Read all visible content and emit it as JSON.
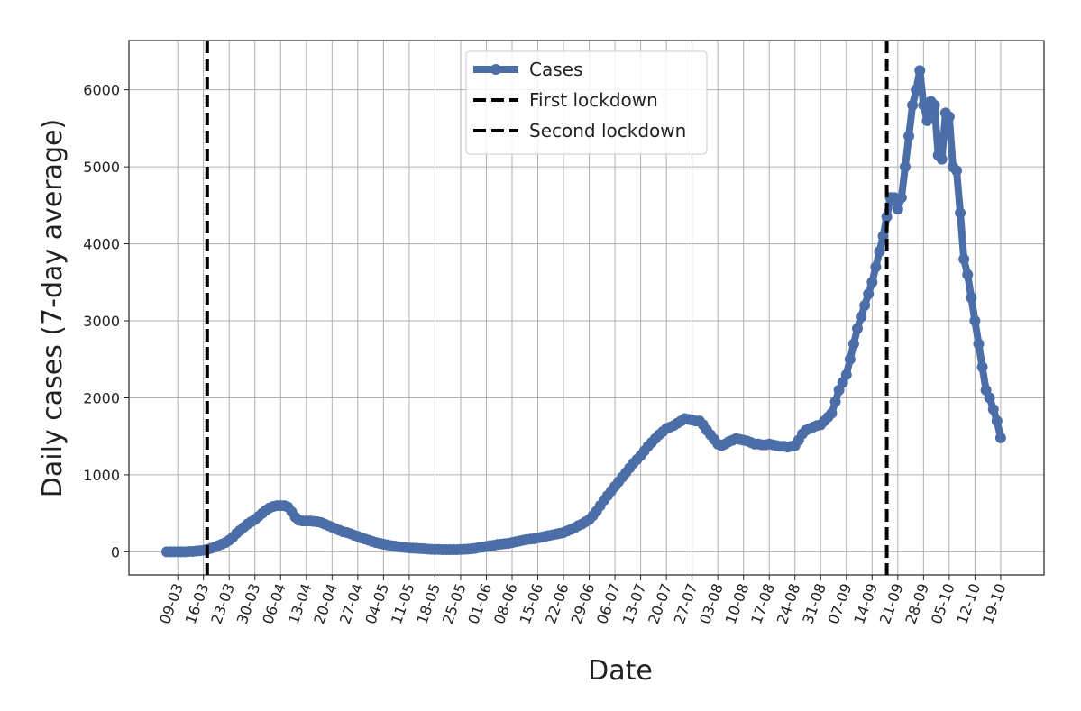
{
  "chart_data": {
    "type": "line",
    "xlabel": "Date",
    "ylabel": "Daily cases (7-day average)",
    "categories": [
      null,
      null,
      null,
      "09-03",
      null,
      null,
      null,
      null,
      null,
      null,
      "16-03",
      null,
      null,
      null,
      null,
      null,
      null,
      "23-03",
      null,
      null,
      null,
      null,
      null,
      null,
      "30-03",
      null,
      null,
      null,
      null,
      null,
      null,
      "06-04",
      null,
      null,
      null,
      null,
      null,
      null,
      "13-04",
      null,
      null,
      null,
      null,
      null,
      null,
      "20-04",
      null,
      null,
      null,
      null,
      null,
      null,
      "27-04",
      null,
      null,
      null,
      null,
      null,
      null,
      "04-05",
      null,
      null,
      null,
      null,
      null,
      null,
      "11-05",
      null,
      null,
      null,
      null,
      null,
      null,
      "18-05",
      null,
      null,
      null,
      null,
      null,
      null,
      "25-05",
      null,
      null,
      null,
      null,
      null,
      null,
      "01-06",
      null,
      null,
      null,
      null,
      null,
      null,
      "08-06",
      null,
      null,
      null,
      null,
      null,
      null,
      "15-06",
      null,
      null,
      null,
      null,
      null,
      null,
      "22-06",
      null,
      null,
      null,
      null,
      null,
      null,
      "29-06",
      null,
      null,
      null,
      null,
      null,
      null,
      "06-07",
      null,
      null,
      null,
      null,
      null,
      null,
      "13-07",
      null,
      null,
      null,
      null,
      null,
      null,
      "20-07",
      null,
      null,
      null,
      null,
      null,
      null,
      "27-07",
      null,
      null,
      null,
      null,
      null,
      null,
      "03-08",
      null,
      null,
      null,
      null,
      null,
      null,
      "10-08",
      null,
      null,
      null,
      null,
      null,
      null,
      "17-08",
      null,
      null,
      null,
      null,
      null,
      null,
      "24-08",
      null,
      null,
      null,
      null,
      null,
      null,
      "31-08",
      null,
      null,
      null,
      null,
      null,
      null,
      "07-09",
      null,
      null,
      null,
      null,
      null,
      null,
      "14-09",
      null,
      null,
      null,
      null,
      null,
      null,
      "21-09",
      null,
      null,
      null,
      null,
      null,
      null,
      "28-09",
      null,
      null,
      null,
      null,
      null,
      null,
      "05-10",
      null,
      null,
      null,
      null,
      null,
      null,
      "12-10",
      null,
      null,
      null,
      null,
      null,
      null,
      "19-10"
    ],
    "series": [
      {
        "name": "Cases",
        "color": "#4c6ea8",
        "values": [
          0,
          0,
          0,
          0,
          0,
          0,
          5,
          5,
          10,
          15,
          20,
          30,
          45,
          60,
          80,
          100,
          120,
          150,
          190,
          240,
          280,
          320,
          360,
          390,
          420,
          460,
          500,
          540,
          570,
          590,
          600,
          600,
          600,
          580,
          520,
          450,
          410,
          400,
          400,
          400,
          395,
          390,
          380,
          360,
          340,
          320,
          300,
          280,
          260,
          250,
          235,
          215,
          200,
          180,
          165,
          150,
          135,
          120,
          110,
          100,
          90,
          80,
          75,
          65,
          60,
          55,
          50,
          48,
          45,
          42,
          40,
          35,
          32,
          30,
          30,
          28,
          28,
          28,
          28,
          28,
          30,
          32,
          35,
          40,
          45,
          55,
          60,
          70,
          80,
          85,
          95,
          100,
          105,
          110,
          120,
          130,
          140,
          150,
          160,
          165,
          170,
          180,
          190,
          200,
          210,
          220,
          230,
          240,
          250,
          270,
          290,
          310,
          340,
          360,
          390,
          420,
          470,
          530,
          600,
          670,
          730,
          790,
          850,
          910,
          970,
          1030,
          1090,
          1150,
          1200,
          1250,
          1310,
          1370,
          1420,
          1470,
          1520,
          1560,
          1600,
          1620,
          1640,
          1670,
          1700,
          1730,
          1720,
          1710,
          1700,
          1700,
          1650,
          1580,
          1520,
          1460,
          1400,
          1380,
          1400,
          1430,
          1450,
          1470,
          1460,
          1450,
          1440,
          1420,
          1400,
          1400,
          1390,
          1390,
          1400,
          1390,
          1380,
          1370,
          1370,
          1360,
          1370,
          1380,
          1450,
          1530,
          1580,
          1600,
          1620,
          1640,
          1650,
          1700,
          1750,
          1800,
          1950,
          2100,
          2200,
          2300,
          2500,
          2700,
          2900,
          3050,
          3200,
          3350,
          3500,
          3700,
          3900,
          4100,
          4350,
          4600,
          4600,
          4450,
          4600,
          5000,
          5400,
          5800,
          6000,
          6250,
          5800,
          5600,
          5850,
          5800,
          5150,
          5100,
          5700,
          5650,
          5000,
          4950,
          4400,
          3800,
          3600,
          3300,
          3000,
          2700,
          2400,
          2100,
          2000,
          1850,
          1700,
          1480
        ]
      }
    ],
    "vlines": [
      {
        "name": "First lockdown",
        "x": 11,
        "color": "#000000"
      },
      {
        "name": "Second lockdown",
        "x": 196,
        "color": "#000000"
      }
    ],
    "xlim": [
      -10.3,
      238.8
    ],
    "ylim": [
      -300,
      6640
    ],
    "yticks": [
      0,
      1000,
      2000,
      3000,
      4000,
      5000,
      6000
    ],
    "grid": true,
    "legend": "upper center"
  }
}
